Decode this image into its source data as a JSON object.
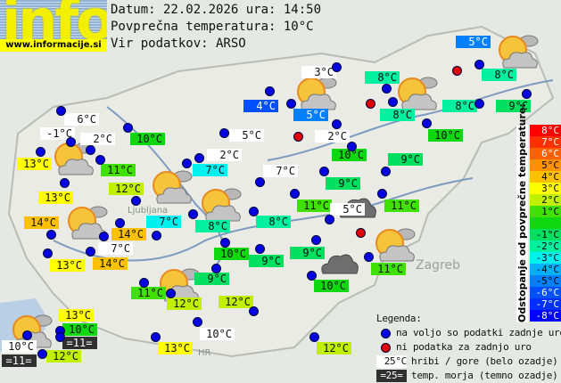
{
  "logo": {
    "text": "info",
    "url": "www.informacije.si"
  },
  "header": {
    "date_line": "Datum: 22.02.2026 ura: 14:50",
    "avg_line": "Povprečna temperatura: 10°C",
    "source_line": "Vir podatkov: ARSO"
  },
  "average_temperature": 10,
  "labels": [
    {
      "t": "5°C",
      "kind": "dev"
    },
    {
      "t": "3°C",
      "kind": "mountain"
    },
    {
      "t": "8°C",
      "kind": "dev"
    },
    {
      "t": "8°C",
      "kind": "dev"
    },
    {
      "t": "4°C",
      "kind": "dev"
    },
    {
      "t": "5°C",
      "kind": "dev"
    },
    {
      "t": "8°C",
      "kind": "dev"
    },
    {
      "t": "8°C",
      "kind": "dev"
    },
    {
      "t": "9°C",
      "kind": "dev"
    },
    {
      "t": "6°C",
      "kind": "mountain"
    },
    {
      "t": "-1°C",
      "kind": "mountain"
    },
    {
      "t": "2°C",
      "kind": "mountain"
    },
    {
      "t": "10°C",
      "kind": "dev"
    },
    {
      "t": "5°C",
      "kind": "mountain"
    },
    {
      "t": "2°C",
      "kind": "mountain"
    },
    {
      "t": "10°C",
      "kind": "dev"
    },
    {
      "t": "10°C",
      "kind": "dev"
    },
    {
      "t": "2°C",
      "kind": "mountain"
    },
    {
      "t": "13°C",
      "kind": "dev"
    },
    {
      "t": "9°C",
      "kind": "dev"
    },
    {
      "t": "11°C",
      "kind": "dev"
    },
    {
      "t": "7°C",
      "kind": "dev"
    },
    {
      "t": "7°C",
      "kind": "mountain"
    },
    {
      "t": "9°C",
      "kind": "dev"
    },
    {
      "t": "12°C",
      "kind": "dev"
    },
    {
      "t": "13°C",
      "kind": "dev"
    },
    {
      "t": "11°C",
      "kind": "dev"
    },
    {
      "t": "5°C",
      "kind": "mountain"
    },
    {
      "t": "11°C",
      "kind": "dev"
    },
    {
      "t": "14°C",
      "kind": "dev"
    },
    {
      "t": "7°C",
      "kind": "dev"
    },
    {
      "t": "8°C",
      "kind": "dev"
    },
    {
      "t": "8°C",
      "kind": "dev"
    },
    {
      "t": "14°C",
      "kind": "dev"
    },
    {
      "t": "7°C",
      "kind": "mountain"
    },
    {
      "t": "10°C",
      "kind": "dev"
    },
    {
      "t": "9°C",
      "kind": "dev"
    },
    {
      "t": "9°C",
      "kind": "dev"
    },
    {
      "t": "14°C",
      "kind": "dev"
    },
    {
      "t": "13°C",
      "kind": "dev"
    },
    {
      "t": "11°C",
      "kind": "dev"
    },
    {
      "t": "9°C",
      "kind": "dev"
    },
    {
      "t": "10°C",
      "kind": "dev"
    },
    {
      "t": "11°C",
      "kind": "dev"
    },
    {
      "t": "12°C",
      "kind": "dev"
    },
    {
      "t": "12°C",
      "kind": "dev"
    },
    {
      "t": "13°C",
      "kind": "dev"
    },
    {
      "t": "10°C",
      "kind": "dev"
    },
    {
      "t": "10°C",
      "kind": "mountain"
    },
    {
      "t": "=11=",
      "kind": "sea"
    },
    {
      "t": "=11=",
      "kind": "sea"
    },
    {
      "t": "12°C",
      "kind": "dev"
    },
    {
      "t": "13°C",
      "kind": "dev"
    },
    {
      "t": "10°C",
      "kind": "mountain"
    },
    {
      "t": "12°C",
      "kind": "dev"
    }
  ],
  "scale": {
    "title": "Odstopanje od povprečne temperature:",
    "steps": [
      {
        "t": "8°C",
        "bg": "#ff0000",
        "fg": "#ffffff"
      },
      {
        "t": "7°C",
        "bg": "#ff3000",
        "fg": "#ffffff"
      },
      {
        "t": "6°C",
        "bg": "#ff6000",
        "fg": "#ffffff"
      },
      {
        "t": "5°C",
        "bg": "#ff9000",
        "fg": "#000000"
      },
      {
        "t": "4°C",
        "bg": "#ffc000",
        "fg": "#000000"
      },
      {
        "t": "3°C",
        "bg": "#ffff00",
        "fg": "#000000"
      },
      {
        "t": "2°C",
        "bg": "#c0f000",
        "fg": "#000000"
      },
      {
        "t": "1°C",
        "bg": "#40e000",
        "fg": "#000000"
      },
      {
        "t": "",
        "bg": "#10d810",
        "fg": "#000000"
      },
      {
        "t": "-1°C",
        "bg": "#00e060",
        "fg": "#000000"
      },
      {
        "t": "-2°C",
        "bg": "#00f0a0",
        "fg": "#000000"
      },
      {
        "t": "-3°C",
        "bg": "#00f0f0",
        "fg": "#000000"
      },
      {
        "t": "-4°C",
        "bg": "#00b0ff",
        "fg": "#000000"
      },
      {
        "t": "-5°C",
        "bg": "#0080ff",
        "fg": "#000000"
      },
      {
        "t": "-6°C",
        "bg": "#0050ff",
        "fg": "#ffffff"
      },
      {
        "t": "-7°C",
        "bg": "#0030ff",
        "fg": "#ffffff"
      },
      {
        "t": "-8°C",
        "bg": "#0000ff",
        "fg": "#ffffff"
      }
    ]
  },
  "legend": {
    "title": "Legenda:",
    "available": "na voljo so podatki zadnje ure",
    "missing": "ni podatka za zadnjo uro",
    "mountain_sample": "25°C",
    "mountain": "hribi / gore (belo ozadje)",
    "sea_sample": "=25=",
    "sea": "temp. morja (temno ozadje)",
    "colors": {
      "available": "#0000e0",
      "missing": "#e00000",
      "mountain": "#ffffff",
      "sea": "#303030"
    }
  },
  "map_text": {
    "zagreb": "Zagreb",
    "ljubljana": "Ljubljana",
    "hr": "HR"
  }
}
